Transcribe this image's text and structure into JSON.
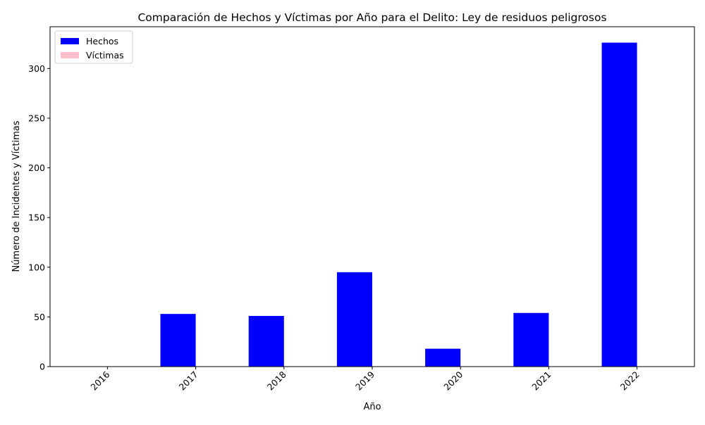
{
  "chart_data": {
    "type": "bar",
    "title": "Comparación de Hechos y Víctimas por Año para el Delito: Ley de residuos peligrosos",
    "xlabel": "Año",
    "ylabel": "Número de Incidentes y Víctimas",
    "categories": [
      "2016",
      "2017",
      "2018",
      "2019",
      "2020",
      "2021",
      "2022"
    ],
    "series": [
      {
        "name": "Hechos",
        "color": "#0000ff",
        "values": [
          0,
          53,
          51,
          95,
          18,
          54,
          326
        ]
      },
      {
        "name": "Víctimas",
        "color": "#ffc0cb",
        "values": [
          0,
          0,
          0,
          0,
          0,
          0,
          0
        ]
      }
    ],
    "ylim": [
      0,
      342
    ],
    "yticks": [
      0,
      50,
      100,
      150,
      200,
      250,
      300
    ],
    "legend": "top-left",
    "grid": false
  }
}
